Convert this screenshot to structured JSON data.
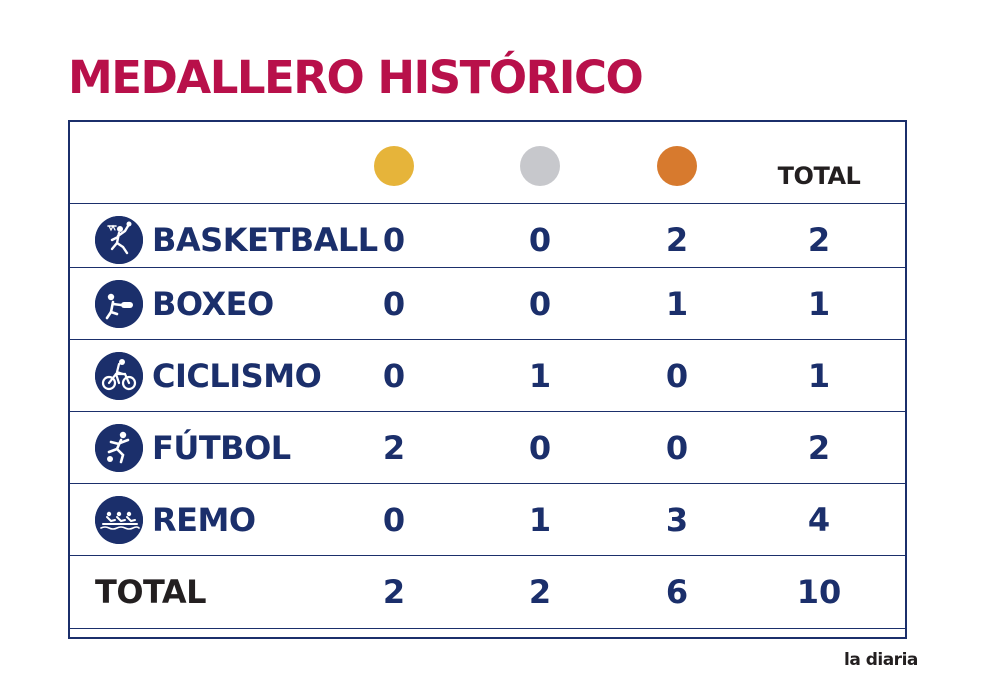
{
  "title": "MEDALLERO HISTÓRICO",
  "header": {
    "medals": [
      {
        "name": "gold-medal",
        "color": "#e6b43a"
      },
      {
        "name": "silver-medal",
        "color": "#c7c8cc"
      },
      {
        "name": "bronze-medal",
        "color": "#d77a2e"
      }
    ],
    "total_label": "TOTAL"
  },
  "colors": {
    "title": "#b8104a",
    "navy": "#1b2f6b",
    "dark": "#231f20"
  },
  "rows": [
    {
      "sport": "BASKETBALL",
      "icon": "basketball-icon",
      "gold": "0",
      "silver": "0",
      "bronze": "2",
      "total": "2"
    },
    {
      "sport": "BOXEO",
      "icon": "boxing-icon",
      "gold": "0",
      "silver": "0",
      "bronze": "1",
      "total": "1"
    },
    {
      "sport": "CICLISMO",
      "icon": "cycling-icon",
      "gold": "0",
      "silver": "1",
      "bronze": "0",
      "total": "1"
    },
    {
      "sport": "FÚTBOL",
      "icon": "football-icon",
      "gold": "2",
      "silver": "0",
      "bronze": "0",
      "total": "2"
    },
    {
      "sport": "REMO",
      "icon": "rowing-icon",
      "gold": "0",
      "silver": "1",
      "bronze": "3",
      "total": "4"
    }
  ],
  "totals": {
    "label": "TOTAL",
    "gold": "2",
    "silver": "2",
    "bronze": "6",
    "total": "10"
  },
  "brand": "la diaria"
}
